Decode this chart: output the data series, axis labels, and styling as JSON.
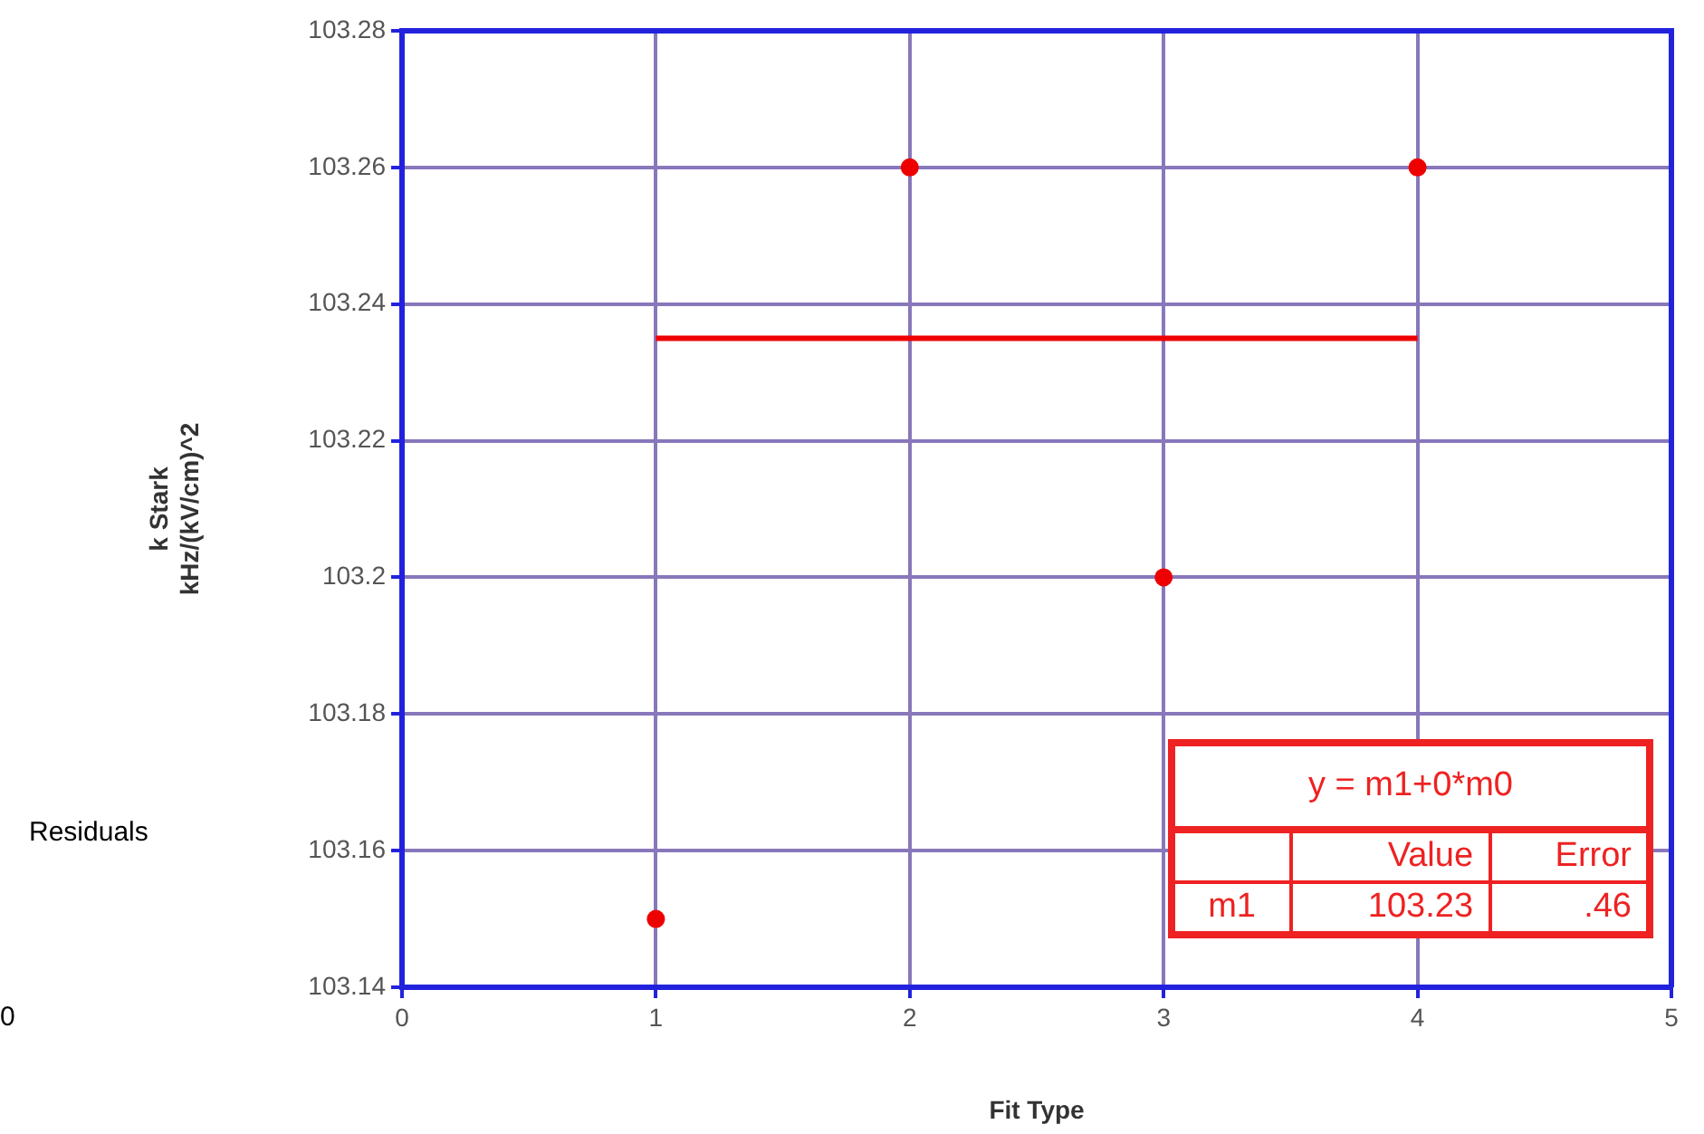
{
  "chart_data": {
    "type": "scatter",
    "xlabel": "Fit Type",
    "ylabel": "k Stark\nkHz/(kV/cm)^2",
    "xlim": [
      0,
      5
    ],
    "xticks": [
      0,
      1,
      2,
      3,
      4,
      5
    ],
    "ylim": [
      103.14,
      103.28
    ],
    "yticks": [
      103.14,
      103.16,
      103.18,
      {
        "value": 103.2,
        "label": "103.2"
      },
      103.22,
      103.24,
      103.26,
      103.28
    ],
    "grid": true,
    "legend": false,
    "marker": "circle",
    "x": [
      1,
      2,
      3,
      4
    ],
    "series": [
      {
        "color": "#ee0000",
        "values": [
          103.15,
          103.26,
          103.2,
          103.26
        ]
      },
      {
        "type": "line",
        "color": "#ee0000",
        "x": [
          1,
          4
        ],
        "values": [
          103.235,
          103.235
        ],
        "marker": "none",
        "line_style": "solid"
      }
    ],
    "annotations": [
      "Residuals",
      "0",
      "y = m1+0*m0",
      "Value",
      "Error",
      "m1",
      "103.23",
      ".46"
    ]
  }
}
